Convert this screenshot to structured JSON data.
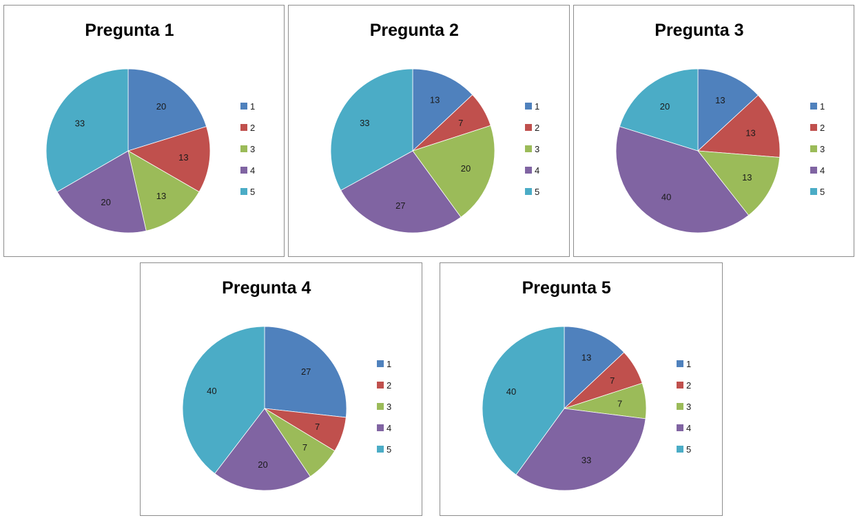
{
  "colors": [
    "#4F81BD",
    "#C0504D",
    "#9BBB59",
    "#8064A2",
    "#4BACC6"
  ],
  "chart_data": [
    {
      "type": "pie",
      "title": "Pregunta 1",
      "categories": [
        "1",
        "2",
        "3",
        "4",
        "5"
      ],
      "values": [
        20,
        13,
        13,
        20,
        33
      ],
      "legend": "right"
    },
    {
      "type": "pie",
      "title": "Pregunta 2",
      "categories": [
        "1",
        "2",
        "3",
        "4",
        "5"
      ],
      "values": [
        13,
        7,
        20,
        27,
        33
      ],
      "legend": "right"
    },
    {
      "type": "pie",
      "title": "Pregunta 3",
      "categories": [
        "1",
        "2",
        "3",
        "4",
        "5"
      ],
      "values": [
        13,
        13,
        13,
        40,
        20
      ],
      "legend": "right"
    },
    {
      "type": "pie",
      "title": "Pregunta 4",
      "categories": [
        "1",
        "2",
        "3",
        "4",
        "5"
      ],
      "values": [
        27,
        7,
        7,
        20,
        40
      ],
      "legend": "right"
    },
    {
      "type": "pie",
      "title": "Pregunta 5",
      "categories": [
        "1",
        "2",
        "3",
        "4",
        "5"
      ],
      "values": [
        13,
        7,
        7,
        33,
        40
      ],
      "legend": "right"
    }
  ]
}
